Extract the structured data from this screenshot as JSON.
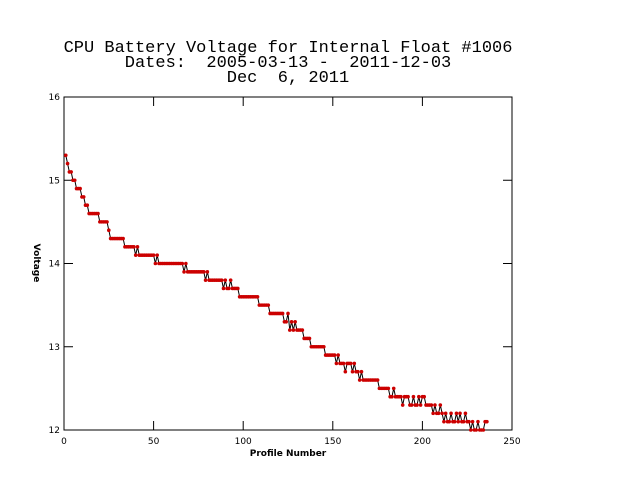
{
  "chart_data": {
    "type": "line",
    "title": "CPU Battery Voltage for Internal Float #1006",
    "subtitle": "Dates:  2005-03-13 -  2011-12-03",
    "date": "Dec  6, 2011",
    "xlabel": "Profile Number",
    "ylabel": "Voltage",
    "xlim": [
      0,
      250
    ],
    "xticks": [
      0,
      50,
      100,
      150,
      200,
      250
    ],
    "ylim": [
      12,
      16
    ],
    "yticks": [
      12,
      13,
      14,
      15,
      16
    ],
    "line_color": "#000000",
    "marker_color": "#cc0000",
    "x": [
      1,
      2,
      3,
      4,
      5,
      6,
      7,
      8,
      9,
      10,
      11,
      12,
      13,
      14,
      15,
      16,
      17,
      18,
      19,
      20,
      21,
      22,
      23,
      24,
      25,
      26,
      27,
      28,
      29,
      30,
      31,
      32,
      33,
      34,
      35,
      36,
      37,
      38,
      39,
      40,
      41,
      42,
      43,
      44,
      45,
      46,
      47,
      48,
      49,
      50,
      51,
      52,
      53,
      54,
      55,
      56,
      57,
      58,
      59,
      60,
      61,
      62,
      63,
      64,
      65,
      66,
      67,
      68,
      69,
      70,
      71,
      72,
      73,
      74,
      75,
      76,
      77,
      78,
      79,
      80,
      81,
      82,
      83,
      84,
      85,
      86,
      87,
      88,
      89,
      90,
      91,
      92,
      93,
      94,
      95,
      96,
      97,
      98,
      99,
      100,
      101,
      102,
      103,
      104,
      105,
      106,
      107,
      108,
      109,
      110,
      111,
      112,
      113,
      114,
      115,
      116,
      117,
      118,
      119,
      120,
      121,
      122,
      123,
      124,
      125,
      126,
      127,
      128,
      129,
      130,
      131,
      132,
      133,
      134,
      135,
      136,
      137,
      138,
      139,
      140,
      141,
      142,
      143,
      144,
      145,
      146,
      147,
      148,
      149,
      150,
      151,
      152,
      153,
      154,
      155,
      156,
      157,
      158,
      159,
      160,
      161,
      162,
      163,
      164,
      165,
      166,
      167,
      168,
      169,
      170,
      171,
      172,
      173,
      174,
      175,
      176,
      177,
      178,
      179,
      180,
      181,
      182,
      183,
      184,
      185,
      186,
      187,
      188,
      189,
      190,
      191,
      192,
      193,
      194,
      195,
      196,
      197,
      198,
      199,
      200,
      201,
      202,
      203,
      204,
      205,
      206,
      207,
      208,
      209,
      210,
      211,
      212,
      213,
      214,
      215,
      216,
      217,
      218,
      219,
      220,
      221,
      222,
      223,
      224,
      225,
      226,
      227,
      228,
      229,
      230,
      231,
      232,
      233,
      234,
      235,
      236
    ],
    "values": [
      15.3,
      15.2,
      15.1,
      15.1,
      15.0,
      15.0,
      14.9,
      14.9,
      14.9,
      14.8,
      14.8,
      14.7,
      14.7,
      14.6,
      14.6,
      14.6,
      14.6,
      14.6,
      14.6,
      14.5,
      14.5,
      14.5,
      14.5,
      14.5,
      14.4,
      14.3,
      14.3,
      14.3,
      14.3,
      14.3,
      14.3,
      14.3,
      14.3,
      14.2,
      14.2,
      14.2,
      14.2,
      14.2,
      14.2,
      14.1,
      14.2,
      14.1,
      14.1,
      14.1,
      14.1,
      14.1,
      14.1,
      14.1,
      14.1,
      14.1,
      14.0,
      14.1,
      14.0,
      14.0,
      14.0,
      14.0,
      14.0,
      14.0,
      14.0,
      14.0,
      14.0,
      14.0,
      14.0,
      14.0,
      14.0,
      14.0,
      13.9,
      14.0,
      13.9,
      13.9,
      13.9,
      13.9,
      13.9,
      13.9,
      13.9,
      13.9,
      13.9,
      13.9,
      13.8,
      13.9,
      13.8,
      13.8,
      13.8,
      13.8,
      13.8,
      13.8,
      13.8,
      13.8,
      13.7,
      13.8,
      13.7,
      13.7,
      13.8,
      13.7,
      13.7,
      13.7,
      13.7,
      13.6,
      13.6,
      13.6,
      13.6,
      13.6,
      13.6,
      13.6,
      13.6,
      13.6,
      13.6,
      13.6,
      13.5,
      13.5,
      13.5,
      13.5,
      13.5,
      13.5,
      13.4,
      13.4,
      13.4,
      13.4,
      13.4,
      13.4,
      13.4,
      13.4,
      13.3,
      13.3,
      13.4,
      13.2,
      13.3,
      13.2,
      13.3,
      13.2,
      13.2,
      13.2,
      13.2,
      13.1,
      13.1,
      13.1,
      13.1,
      13.0,
      13.0,
      13.0,
      13.0,
      13.0,
      13.0,
      13.0,
      13.0,
      12.9,
      12.9,
      12.9,
      12.9,
      12.9,
      12.9,
      12.8,
      12.9,
      12.8,
      12.8,
      12.8,
      12.7,
      12.8,
      12.8,
      12.8,
      12.7,
      12.8,
      12.7,
      12.7,
      12.6,
      12.7,
      12.6,
      12.6,
      12.6,
      12.6,
      12.6,
      12.6,
      12.6,
      12.6,
      12.6,
      12.5,
      12.5,
      12.5,
      12.5,
      12.5,
      12.5,
      12.4,
      12.4,
      12.5,
      12.4,
      12.4,
      12.4,
      12.4,
      12.3,
      12.4,
      12.4,
      12.4,
      12.3,
      12.3,
      12.4,
      12.3,
      12.3,
      12.4,
      12.3,
      12.4,
      12.4,
      12.3,
      12.3,
      12.3,
      12.3,
      12.2,
      12.3,
      12.2,
      12.2,
      12.3,
      12.2,
      12.1,
      12.2,
      12.1,
      12.1,
      12.2,
      12.1,
      12.1,
      12.2,
      12.1,
      12.2,
      12.1,
      12.1,
      12.2,
      12.1,
      12.1,
      12.0,
      12.1,
      12.0,
      12.0,
      12.1,
      12.0,
      12.0,
      12.0,
      12.1,
      12.1
    ]
  }
}
